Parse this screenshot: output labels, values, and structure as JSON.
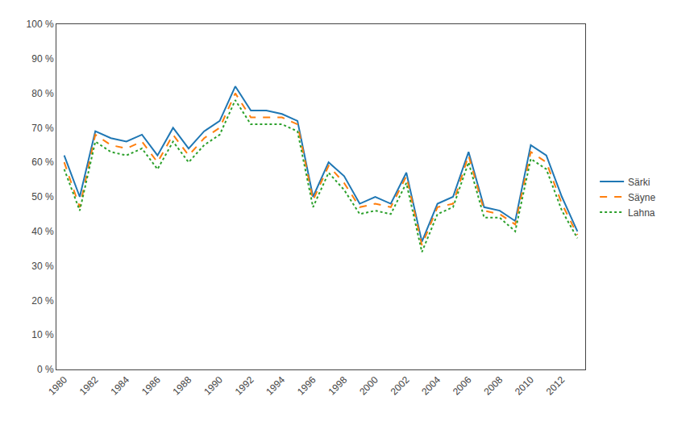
{
  "chart_data": {
    "type": "line",
    "x": [
      1980,
      1981,
      1982,
      1983,
      1984,
      1985,
      1986,
      1987,
      1988,
      1989,
      1990,
      1991,
      1992,
      1993,
      1994,
      1995,
      1996,
      1997,
      1998,
      1999,
      2000,
      2001,
      2002,
      2003,
      2004,
      2005,
      2006,
      2007,
      2008,
      2009,
      2010,
      2011,
      2012,
      2013
    ],
    "series": [
      {
        "name": "Särki",
        "line_style": "solid",
        "values": [
          0.62,
          0.5,
          0.69,
          0.67,
          0.66,
          0.68,
          0.62,
          0.7,
          0.64,
          0.69,
          0.72,
          0.82,
          0.75,
          0.75,
          0.74,
          0.72,
          0.5,
          0.6,
          0.56,
          0.48,
          0.5,
          0.48,
          0.57,
          0.37,
          0.48,
          0.5,
          0.63,
          0.47,
          0.46,
          0.43,
          0.65,
          0.62,
          0.5,
          0.4
        ]
      },
      {
        "name": "Säyne",
        "line_style": "dashed",
        "values": [
          0.6,
          0.47,
          0.68,
          0.65,
          0.64,
          0.66,
          0.6,
          0.68,
          0.62,
          0.67,
          0.7,
          0.8,
          0.73,
          0.73,
          0.73,
          0.71,
          0.49,
          0.59,
          0.54,
          0.47,
          0.48,
          0.47,
          0.56,
          0.36,
          0.47,
          0.48,
          0.62,
          0.46,
          0.45,
          0.42,
          0.63,
          0.6,
          0.48,
          0.39
        ]
      },
      {
        "name": "Lahna",
        "line_style": "dotted",
        "values": [
          0.58,
          0.46,
          0.66,
          0.63,
          0.62,
          0.64,
          0.58,
          0.66,
          0.6,
          0.65,
          0.68,
          0.78,
          0.71,
          0.71,
          0.71,
          0.69,
          0.47,
          0.57,
          0.52,
          0.45,
          0.46,
          0.45,
          0.54,
          0.34,
          0.45,
          0.47,
          0.6,
          0.44,
          0.44,
          0.4,
          0.61,
          0.58,
          0.46,
          0.38
        ]
      }
    ],
    "xlim": [
      1979.5,
      2013.5
    ],
    "xticks": [
      1980,
      1982,
      1984,
      1986,
      1988,
      1990,
      1992,
      1994,
      1996,
      1998,
      2000,
      2002,
      2004,
      2006,
      2008,
      2010,
      2012
    ],
    "ylim": [
      0.0,
      1.0
    ],
    "yticks": [
      {
        "value": 0.0,
        "label": "0 %"
      },
      {
        "value": 0.1,
        "label": "10 %"
      },
      {
        "value": 0.2,
        "label": "20 %"
      },
      {
        "value": 0.3,
        "label": "30 %"
      },
      {
        "value": 0.4,
        "label": "40 %"
      },
      {
        "value": 0.5,
        "label": "50 %"
      },
      {
        "value": 0.6,
        "label": "60 %"
      },
      {
        "value": 0.7,
        "label": "70 %"
      },
      {
        "value": 0.8,
        "label": "80 %"
      },
      {
        "value": 0.9,
        "label": "90 %"
      },
      {
        "value": 1.0,
        "label": "100 %"
      }
    ],
    "grid": false,
    "legend": "right"
  }
}
